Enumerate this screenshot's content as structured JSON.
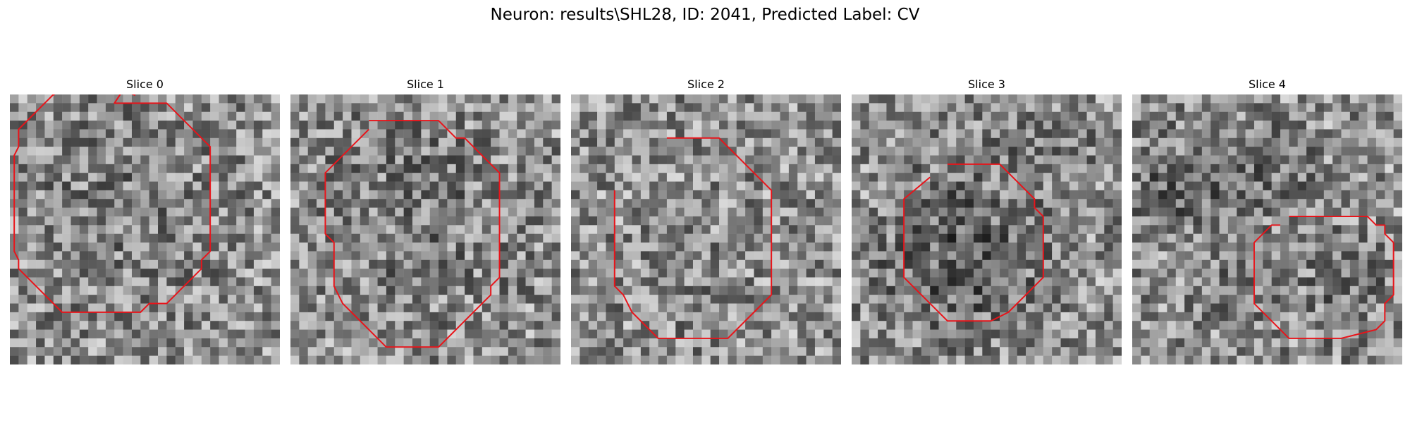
{
  "figure": {
    "title": "Neuron: results\\SHL28, ID: 2041, Predicted Label: CV"
  },
  "panels": [
    {
      "title": "Slice 0",
      "contour": [
        [
          14.4,
          0.1
        ],
        [
          13.0,
          -0.5
        ],
        [
          12.0,
          1.0
        ],
        [
          18.0,
          1.0
        ],
        [
          21.0,
          4.0
        ],
        [
          22.0,
          5.0
        ],
        [
          23.0,
          6.0
        ],
        [
          23.0,
          18.0
        ],
        [
          22.0,
          19.0
        ],
        [
          22.0,
          20.0
        ],
        [
          20.0,
          22.0
        ],
        [
          19.0,
          23.0
        ],
        [
          18.0,
          24.0
        ],
        [
          16.0,
          24.0
        ],
        [
          15.0,
          25.0
        ],
        [
          6.0,
          25.0
        ],
        [
          1.0,
          20.0
        ],
        [
          1.0,
          19.0
        ],
        [
          0.5,
          18.0
        ],
        [
          0.5,
          7.0
        ],
        [
          1.0,
          6.0
        ],
        [
          1.0,
          4.0
        ],
        [
          2.0,
          3.0
        ],
        [
          3.0,
          2.0
        ],
        [
          5.5,
          -0.5
        ],
        [
          5.0,
          0.1
        ]
      ]
    },
    {
      "title": "Slice 1",
      "contour": [
        [
          9.0,
          3.0
        ],
        [
          17.0,
          3.0
        ],
        [
          19.0,
          5.0
        ],
        [
          20.0,
          5.0
        ],
        [
          24.0,
          9.0
        ],
        [
          24.0,
          21.0
        ],
        [
          23.0,
          22.0
        ],
        [
          23.0,
          23.0
        ],
        [
          20.0,
          26.0
        ],
        [
          17.0,
          29.0
        ],
        [
          11.0,
          29.0
        ],
        [
          8.0,
          26.0
        ],
        [
          7.0,
          25.0
        ],
        [
          6.0,
          24.0
        ],
        [
          5.0,
          22.0
        ],
        [
          5.0,
          17.0
        ],
        [
          4.0,
          16.0
        ],
        [
          4.0,
          9.0
        ],
        [
          8.0,
          5.0
        ],
        [
          9.0,
          4.0
        ]
      ]
    },
    {
      "title": "Slice 2",
      "contour": [
        [
          11.0,
          5.0
        ],
        [
          17.0,
          5.0
        ],
        [
          23.0,
          11.0
        ],
        [
          23.0,
          23.0
        ],
        [
          21.0,
          25.0
        ],
        [
          18.0,
          28.0
        ],
        [
          10.0,
          28.0
        ],
        [
          7.0,
          25.0
        ],
        [
          6.0,
          23.0
        ],
        [
          5.0,
          22.0
        ],
        [
          5.0,
          11.0
        ]
      ]
    },
    {
      "title": "Slice 3",
      "contour": [
        [
          11.0,
          8.0
        ],
        [
          17.0,
          8.0
        ],
        [
          20.0,
          11.0
        ],
        [
          21.0,
          12.0
        ],
        [
          21.0,
          13.0
        ],
        [
          22.0,
          14.0
        ],
        [
          22.0,
          21.0
        ],
        [
          21.0,
          22.0
        ],
        [
          18.0,
          25.0
        ],
        [
          16.0,
          26.0
        ],
        [
          11.0,
          26.0
        ],
        [
          6.0,
          21.0
        ],
        [
          6.0,
          12.0
        ],
        [
          9.0,
          9.5
        ]
      ]
    },
    {
      "title": "Slice 4",
      "contour": [
        [
          18.0,
          14.0
        ],
        [
          27.0,
          14.0
        ],
        [
          28.0,
          15.0
        ],
        [
          29.0,
          15.0
        ],
        [
          29.0,
          16.0
        ],
        [
          30.0,
          17.0
        ],
        [
          30.0,
          23.0
        ],
        [
          29.0,
          24.0
        ],
        [
          29.0,
          26.0
        ],
        [
          28.0,
          27.0
        ],
        [
          24.0,
          28.0
        ],
        [
          18.0,
          28.0
        ],
        [
          14.0,
          24.0
        ],
        [
          14.0,
          17.0
        ],
        [
          15.0,
          16.0
        ],
        [
          16.0,
          15.0
        ],
        [
          17.0,
          15.0
        ]
      ]
    }
  ],
  "colors": {
    "contour": "#e8141a",
    "text": "#000000",
    "background": "#ffffff"
  }
}
